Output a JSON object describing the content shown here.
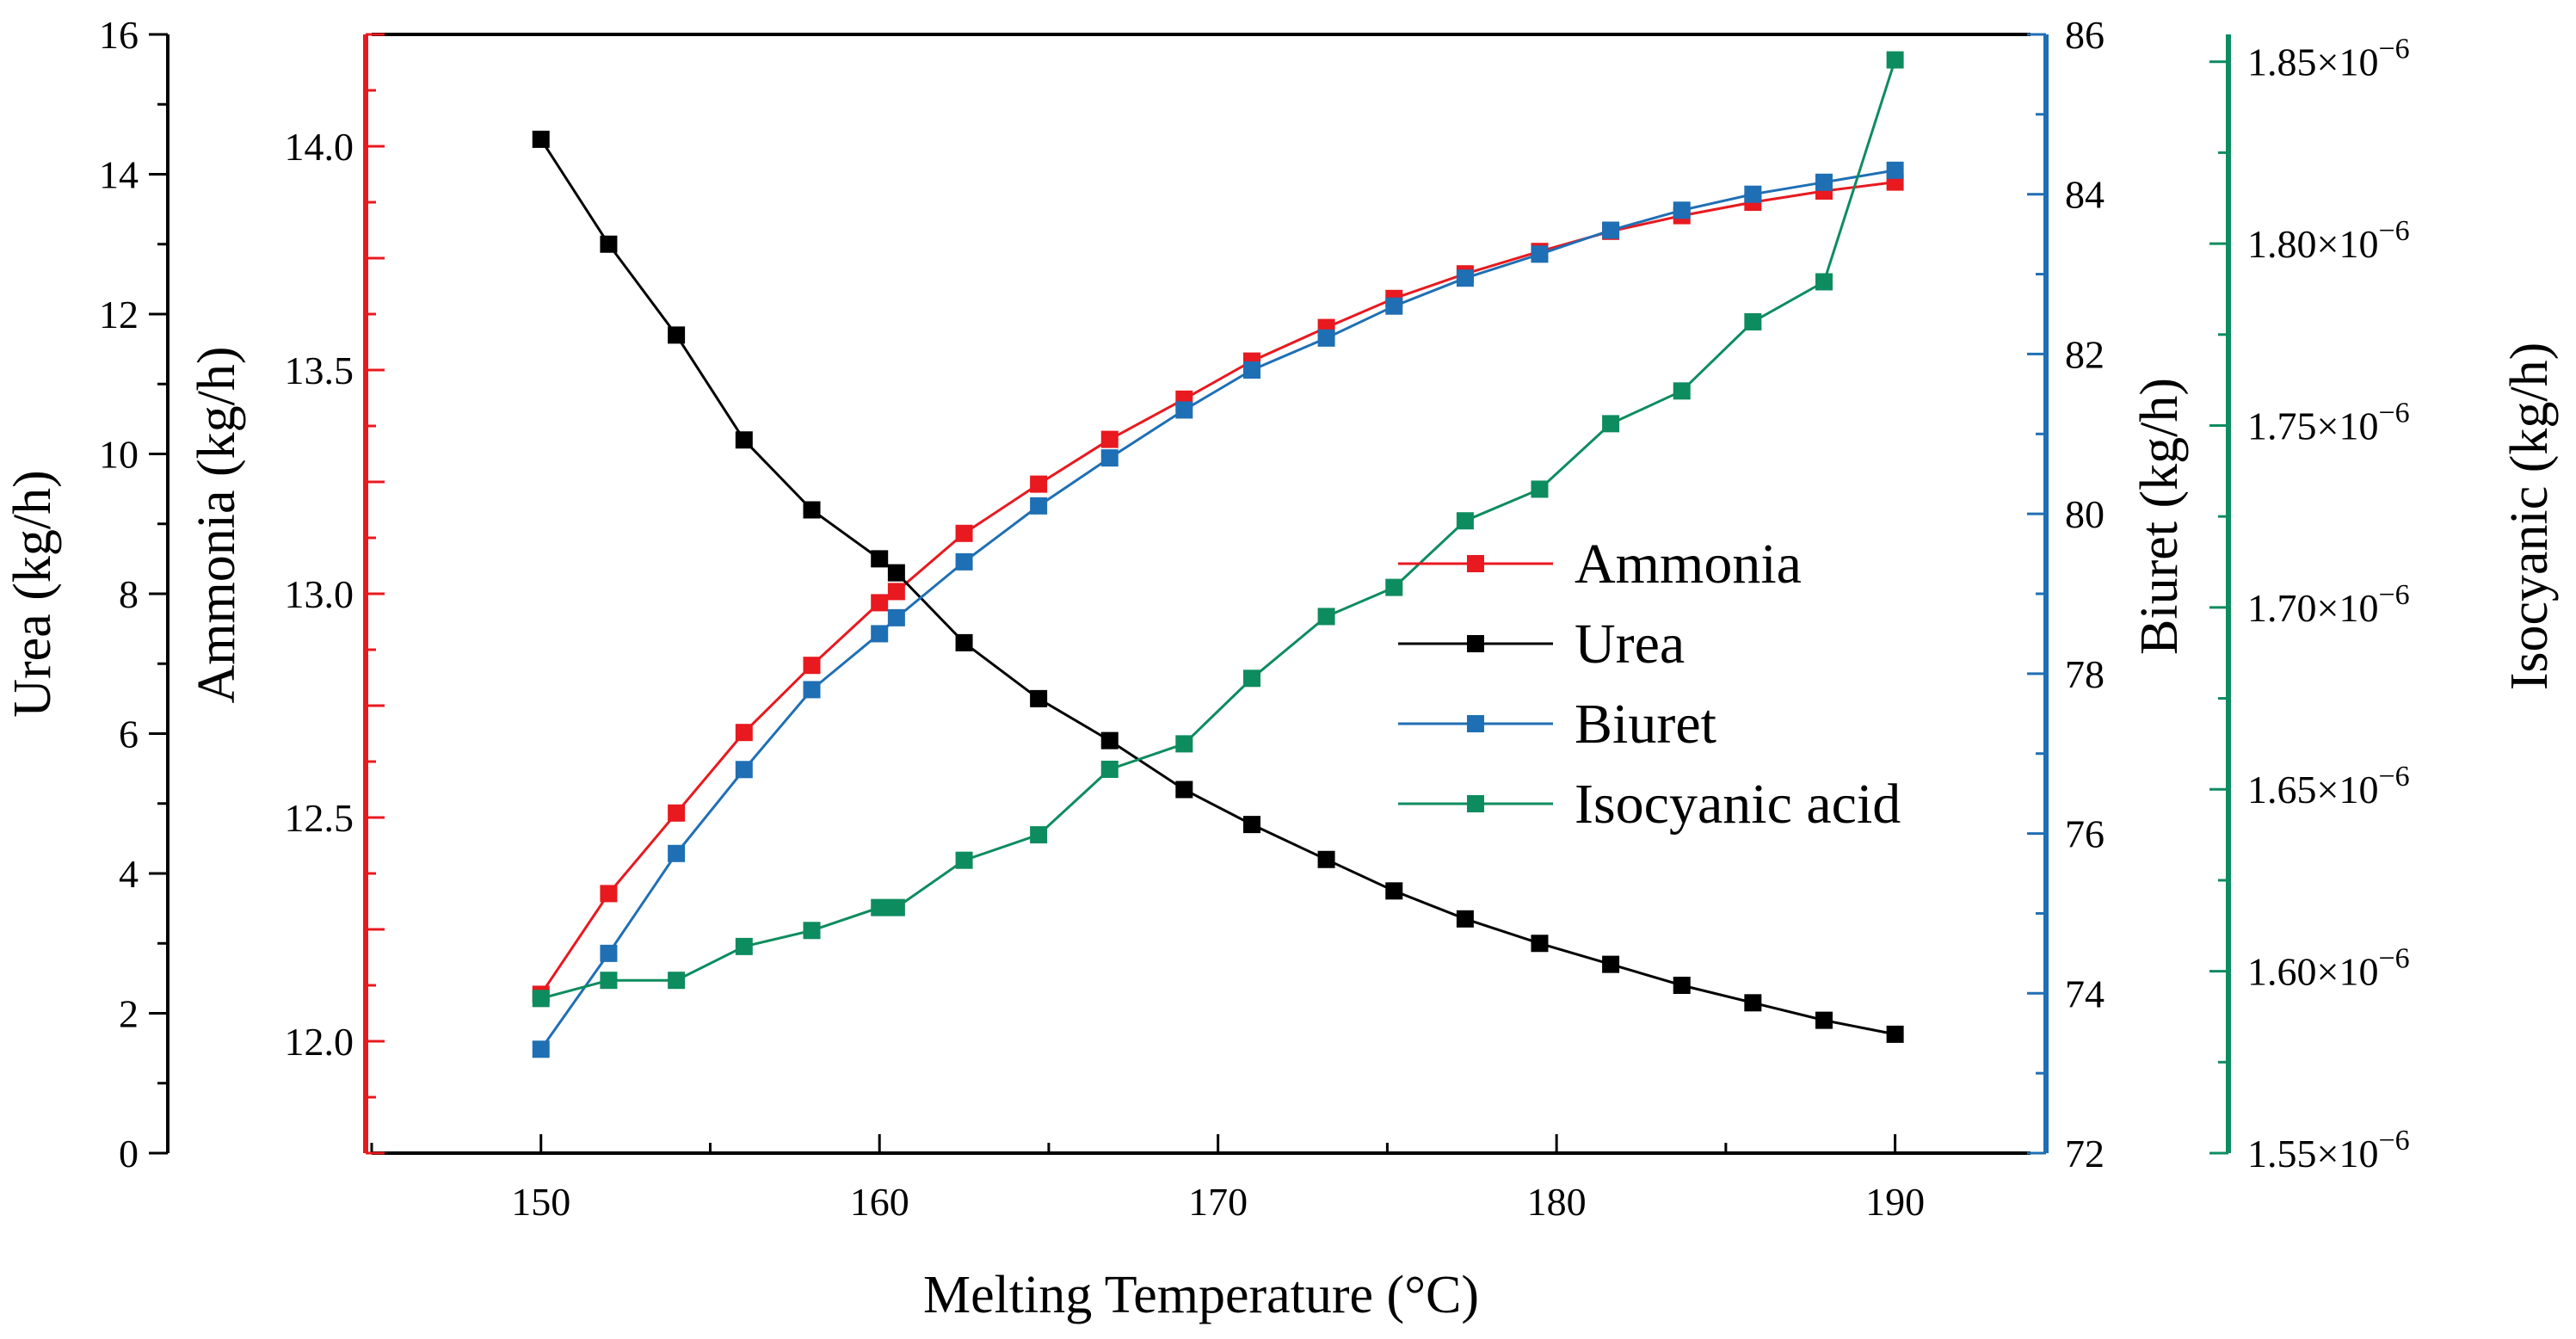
{
  "chart_data": {
    "type": "line",
    "title": "",
    "xlabel": "Melting Temperature (°C)",
    "xlim": [
      145,
      194
    ],
    "x_ticks": [
      "150",
      "160",
      "170",
      "180",
      "190"
    ],
    "x": [
      150,
      152,
      154,
      156,
      158,
      160,
      160.5,
      162.5,
      164.7,
      166.8,
      169,
      171,
      173.2,
      175.2,
      177.3,
      179.5,
      181.6,
      183.7,
      185.8,
      187.9,
      190
    ],
    "axes": {
      "urea": {
        "label": "Urea (kg/h)",
        "range": [
          0,
          16
        ],
        "ticks": [
          "0",
          "2",
          "4",
          "6",
          "8",
          "10",
          "12",
          "14",
          "16"
        ],
        "color": "#000000"
      },
      "ammonia": {
        "label": "Ammonia (kg/h)",
        "range": [
          11.75,
          14.25
        ],
        "ticks": [
          "12.0",
          "12.5",
          "13.0",
          "13.5",
          "14.0"
        ],
        "color": "#e8191f"
      },
      "biuret": {
        "label": "Biuret (kg/h)",
        "range": [
          72,
          86
        ],
        "ticks": [
          "72",
          "74",
          "76",
          "78",
          "80",
          "82",
          "84",
          "86"
        ],
        "color": "#1f6fb4"
      },
      "isocyanic": {
        "label": "Isocyanic (kg/h)",
        "range": [
          1.55,
          1.8575
        ],
        "ticks": [
          "1.55×10",
          "1.60×10",
          "1.65×10",
          "1.70×10",
          "1.75×10",
          "1.80×10",
          "1.85×10"
        ],
        "tick_exponent": "−6",
        "color": "#0d8c5f"
      }
    },
    "series": [
      {
        "name": "Ammonia",
        "axis": "ammonia",
        "color": "#e8191f",
        "values": [
          12.105,
          12.33,
          12.51,
          12.69,
          12.84,
          12.98,
          13.005,
          13.135,
          13.245,
          13.345,
          13.435,
          13.52,
          13.595,
          13.66,
          13.715,
          13.765,
          13.81,
          13.845,
          13.875,
          13.9,
          13.92
        ]
      },
      {
        "name": "Urea",
        "axis": "urea",
        "color": "#000000",
        "values": [
          14.5,
          13.0,
          11.7,
          10.2,
          9.2,
          8.5,
          8.3,
          7.3,
          6.5,
          5.9,
          5.2,
          4.7,
          4.2,
          3.75,
          3.35,
          3.0,
          2.7,
          2.4,
          2.15,
          1.9,
          1.7
        ]
      },
      {
        "name": "Biuret",
        "axis": "biuret",
        "color": "#1f6fb4",
        "values": [
          73.3,
          74.5,
          75.75,
          76.8,
          77.8,
          78.5,
          78.7,
          79.4,
          80.1,
          80.7,
          81.3,
          81.8,
          82.2,
          82.6,
          82.95,
          83.25,
          83.55,
          83.8,
          84.0,
          84.15,
          84.3
        ]
      },
      {
        "name": "Isocyanic acid",
        "axis": "isocyanic",
        "color": "#0d8c5f",
        "values": [
          1.5925,
          1.5975,
          1.5975,
          1.6068,
          1.6112,
          1.6175,
          1.6175,
          1.6305,
          1.6375,
          1.6555,
          1.6625,
          1.6805,
          1.6975,
          1.7055,
          1.7238,
          1.7325,
          1.7505,
          1.7595,
          1.7785,
          1.7895,
          1.8505
        ]
      }
    ],
    "legend": {
      "position": "center-right",
      "entries": [
        "Ammonia",
        "Urea",
        "Biuret",
        "Isocyanic acid"
      ]
    }
  }
}
